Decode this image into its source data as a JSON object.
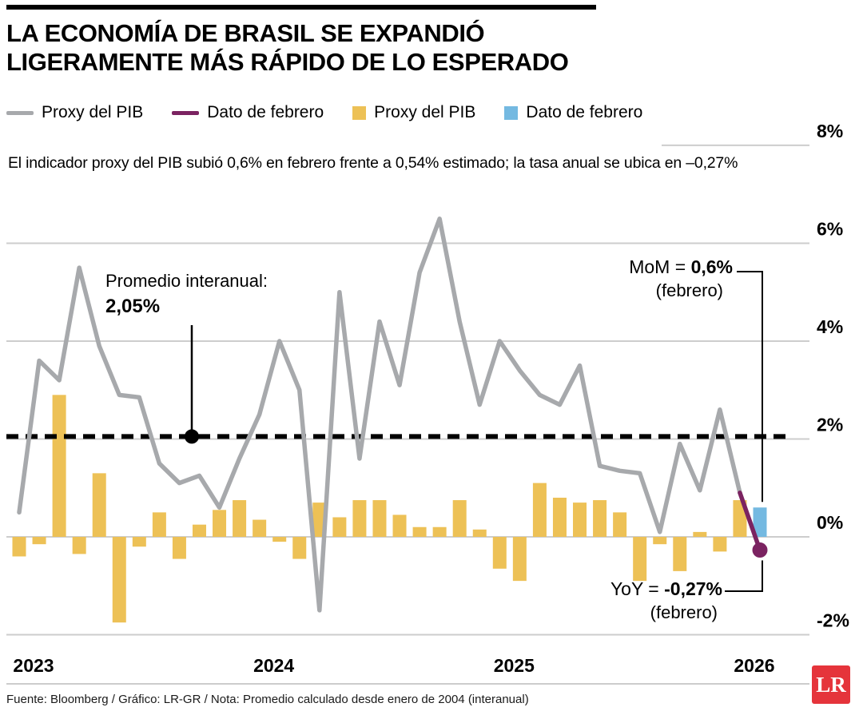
{
  "header": {
    "title_line1": "LA ECONOMÍA DE BRASIL SE EXPANDIÓ",
    "title_line2": "LIGERAMENTE MÁS RÁPIDO DE LO ESPERADO"
  },
  "legend": {
    "items": [
      {
        "label": "Proxy del PIB",
        "type": "line",
        "color": "#a7a9ac"
      },
      {
        "label": "Dato de febrero",
        "type": "line",
        "color": "#7b2361"
      },
      {
        "label": "Proxy del PIB",
        "type": "square",
        "color": "#edc156"
      },
      {
        "label": "Dato de febrero",
        "type": "square",
        "color": "#74b9e1"
      }
    ]
  },
  "subtitle": "El indicador proxy del PIB subió 0,6% en febrero frente a 0,54% estimado; la tasa anual se ubica en –0,27%",
  "annotations": {
    "avg": {
      "label": "Promedio interanual:",
      "value": "2,05%"
    },
    "mom": {
      "prefix": "MoM = ",
      "value": "0,6%",
      "sub": "(febrero)"
    },
    "yoy": {
      "prefix": "YoY = ",
      "value": "-0,27%",
      "sub": "(febrero)"
    }
  },
  "footer": {
    "source": "Fuente: Bloomberg / Gráfico: LR-GR / Nota: Promedio calculado desde enero de 2004 (interanual)",
    "logo": "LR"
  },
  "chart_data": {
    "type": "combo bar+line (monthly)",
    "x_start": "2023-01",
    "x_end": "2026-02",
    "year_labels": [
      "2023",
      "2024",
      "2025",
      "2026"
    ],
    "year_label_month_index": [
      0,
      12,
      24,
      36
    ],
    "yticks": [
      8,
      6,
      4,
      2,
      0,
      -2
    ],
    "ytick_suffix": "%",
    "ylim": [
      -2.7,
      8.6
    ],
    "grid": true,
    "average_yoy": 2.05,
    "series": [
      {
        "name": "Proxy del PIB (tasa interanual, línea)",
        "color": "#a7a9ac",
        "values": [
          0.5,
          3.6,
          3.2,
          5.5,
          3.9,
          2.9,
          2.85,
          1.5,
          1.1,
          1.25,
          0.6,
          1.6,
          2.5,
          4.0,
          3.0,
          -1.5,
          5.0,
          1.6,
          4.4,
          3.1,
          5.4,
          6.5,
          4.4,
          2.7,
          4.0,
          3.4,
          2.9,
          2.7,
          3.5,
          1.45,
          1.35,
          1.3,
          0.1,
          1.9,
          0.95,
          2.6,
          0.9,
          -0.27
        ]
      },
      {
        "name": "Proxy del PIB (tasa mensual, barras)",
        "color": "#edc156",
        "values": [
          -0.4,
          -0.15,
          2.9,
          -0.35,
          1.3,
          -1.75,
          -0.2,
          0.5,
          -0.45,
          0.25,
          0.55,
          0.75,
          0.35,
          -0.1,
          -0.45,
          0.7,
          0.4,
          0.75,
          0.75,
          0.45,
          0.2,
          0.2,
          0.75,
          0.15,
          -0.65,
          -0.9,
          1.1,
          0.8,
          0.7,
          0.75,
          0.5,
          -0.9,
          -0.15,
          -0.7,
          0.1,
          -0.3,
          0.75,
          0.6
        ]
      }
    ],
    "highlight": {
      "month": "2026-02",
      "mom": 0.6,
      "yoy": -0.27,
      "mom_color": "#74b9e1",
      "yoy_color": "#7b2361"
    }
  }
}
